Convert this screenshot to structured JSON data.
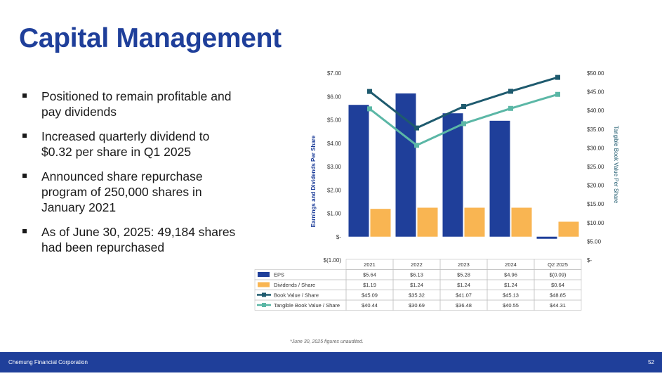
{
  "title": "Capital Management",
  "bullets": [
    "Positioned to remain profitable and pay dividends",
    "Increased quarterly dividend to $0.32 per share in Q1 2025",
    "Announced share repurchase program of 250,000 shares in January 2021",
    "As of June 30, 2025: 49,184 shares had been repurchased"
  ],
  "footnote": "*June 30, 2025 figures unaudited.",
  "footer": {
    "company": "Chemung Financial Corporation",
    "page": "52"
  },
  "colors": {
    "brand": "#1f3f9a",
    "eps": "#1f3f9a",
    "dividends": "#f9b552",
    "book_value": "#1e5a6e",
    "tangible_book_value": "#5bb7a6"
  },
  "chart_data": {
    "type": "bar",
    "categories": [
      "2021",
      "2022",
      "2023",
      "2024",
      "Q2 2025"
    ],
    "ylabel": "Earnings and Dividends Per Share",
    "y2label": "Tangible Book Value Per Share",
    "ylim": [
      -1,
      7
    ],
    "y2lim": [
      0,
      50
    ],
    "y_ticks": [
      "$(1.00)",
      "$-",
      "$1.00",
      "$2.00",
      "$3.00",
      "$4.00",
      "$5.00",
      "$6.00",
      "$7.00"
    ],
    "y2_ticks": [
      "$-",
      "$5.00",
      "$10.00",
      "$15.00",
      "$20.00",
      "$25.00",
      "$30.00",
      "$35.00",
      "$40.00",
      "$45.00",
      "$50.00"
    ],
    "series": [
      {
        "name": "EPS",
        "kind": "bar",
        "axis": "left",
        "values": [
          5.64,
          6.13,
          5.28,
          4.96,
          -0.09
        ],
        "labels": [
          "$5.64",
          "$6.13",
          "$5.28",
          "$4.96",
          "$(0.09)"
        ]
      },
      {
        "name": "Dividends / Share",
        "kind": "bar",
        "axis": "left",
        "values": [
          1.19,
          1.24,
          1.24,
          1.24,
          0.64
        ],
        "labels": [
          "$1.19",
          "$1.24",
          "$1.24",
          "$1.24",
          "$0.64"
        ]
      },
      {
        "name": "Book Value / Share",
        "kind": "line",
        "axis": "right",
        "values": [
          45.09,
          35.32,
          41.07,
          45.13,
          48.85
        ],
        "labels": [
          "$45.09",
          "$35.32",
          "$41.07",
          "$45.13",
          "$48.85"
        ]
      },
      {
        "name": "Tangible Book Value / Share",
        "kind": "line",
        "axis": "right",
        "values": [
          40.44,
          30.69,
          36.48,
          40.55,
          44.31
        ],
        "labels": [
          "$40.44",
          "$30.69",
          "$36.48",
          "$40.55",
          "$44.31"
        ]
      }
    ]
  }
}
